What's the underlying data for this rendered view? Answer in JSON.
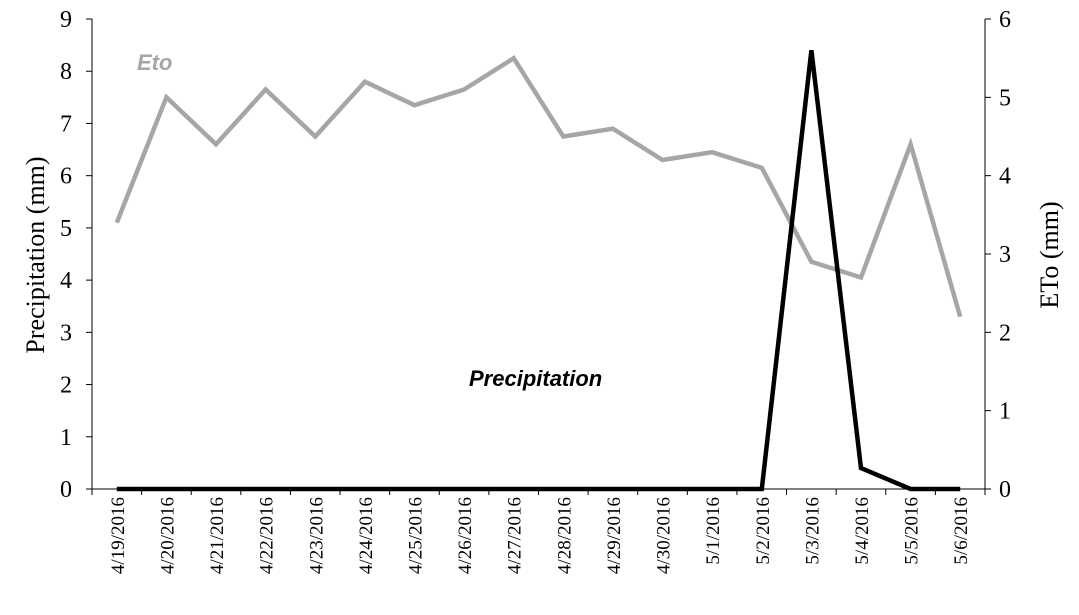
{
  "chart_data": {
    "type": "line",
    "title": "",
    "x": [
      "4/19/2016",
      "4/20/2016",
      "4/21/2016",
      "4/22/2016",
      "4/23/2016",
      "4/24/2016",
      "4/25/2016",
      "4/26/2016",
      "4/27/2016",
      "4/28/2016",
      "4/29/2016",
      "4/30/2016",
      "5/1/2016",
      "5/2/2016",
      "5/3/2016",
      "5/4/2016",
      "5/5/2016",
      "5/6/2016"
    ],
    "y_left": {
      "label": "Precipitation (mm)",
      "lim": [
        0,
        9
      ],
      "ticks": [
        "0",
        "1",
        "2",
        "3",
        "4",
        "5",
        "6",
        "7",
        "8",
        "9"
      ]
    },
    "y_right": {
      "label": "ETo (mm)",
      "lim": [
        0,
        6
      ],
      "ticks": [
        "0",
        "1",
        "2",
        "3",
        "4",
        "5",
        "6"
      ]
    },
    "grid": false,
    "series": [
      {
        "name": "Eto",
        "axis": "right",
        "color": "#a6a6a6",
        "values": [
          3.4,
          5.0,
          4.4,
          5.1,
          4.5,
          5.2,
          4.9,
          5.1,
          5.5,
          4.5,
          4.6,
          4.2,
          4.3,
          4.1,
          2.9,
          2.7,
          4.4,
          2.2
        ]
      },
      {
        "name": "Precipitation",
        "axis": "left",
        "color": "#000000",
        "values": [
          0,
          0,
          0,
          0,
          0,
          0,
          0,
          0,
          0,
          0,
          0,
          0,
          0,
          0,
          8.4,
          0.4,
          0,
          0
        ]
      }
    ]
  }
}
